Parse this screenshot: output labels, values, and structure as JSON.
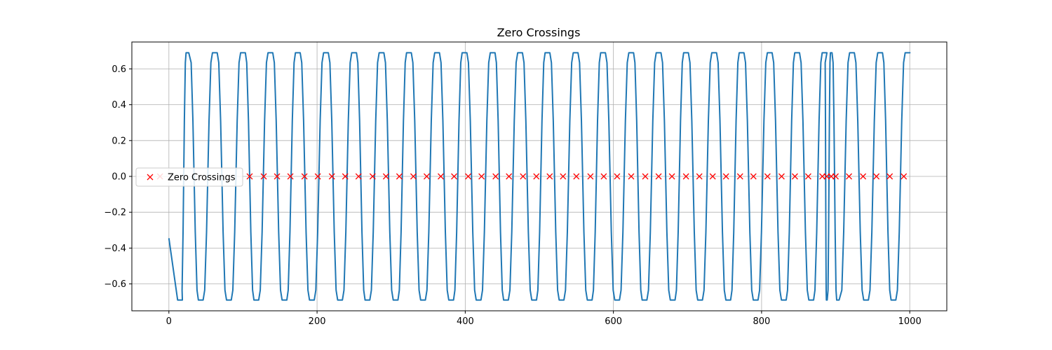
{
  "chart_data": {
    "type": "line",
    "title": "Zero Crossings",
    "xlabel": "",
    "ylabel": "",
    "xlim": [
      -50,
      1050
    ],
    "ylim": [
      -0.75,
      0.75
    ],
    "x_ticks": [
      0,
      200,
      400,
      600,
      800,
      1000
    ],
    "y_ticks": [
      -0.6,
      -0.4,
      -0.2,
      0.0,
      0.2,
      0.4,
      0.6
    ],
    "x_tick_labels": [
      "0",
      "200",
      "400",
      "600",
      "800",
      "1000"
    ],
    "y_tick_labels": [
      "−0.6",
      "−0.4",
      "−0.2",
      "0.0",
      "0.2",
      "0.4",
      "0.6"
    ],
    "grid": true,
    "legend": {
      "placement": "center-left",
      "entries": [
        {
          "label": "Zero Crossings",
          "marker": "x",
          "color": "#ff0000"
        }
      ]
    },
    "series": [
      {
        "style": "line",
        "color": "#1f77b4",
        "description_of_shape": "saturated square-like oscillation between about -0.69 and 0.69",
        "start": {
          "x": 0,
          "y": -0.345
        },
        "amplitude": 0.69,
        "peaks_x": [
          25,
          62,
          100,
          137,
          174,
          212,
          250,
          287,
          324,
          362,
          399,
          437,
          474,
          511,
          549,
          586,
          624,
          661,
          698,
          736,
          773,
          811,
          848,
          885,
          894,
          922,
          960,
          997
        ],
        "troughs_x": [
          15,
          43,
          81,
          118,
          156,
          193,
          231,
          268,
          306,
          343,
          381,
          418,
          455,
          493,
          530,
          568,
          605,
          642,
          680,
          717,
          755,
          792,
          830,
          867,
          888,
          903,
          941,
          978
        ],
        "end": {
          "x": 1000,
          "y": 0.69
        }
      },
      {
        "name": "Zero Crossings",
        "style": "markers",
        "marker": "x",
        "color": "#ff0000",
        "x": [
          -12,
          109,
          128,
          146,
          164,
          183,
          201,
          220,
          238,
          256,
          275,
          293,
          311,
          330,
          348,
          367,
          385,
          404,
          422,
          441,
          459,
          478,
          496,
          514,
          532,
          550,
          569,
          587,
          605,
          624,
          643,
          661,
          679,
          698,
          716,
          734,
          752,
          771,
          789,
          808,
          827,
          845,
          863,
          882,
          888,
          894,
          900,
          918,
          937,
          955,
          973,
          992
        ],
        "y": 0.0
      }
    ]
  }
}
